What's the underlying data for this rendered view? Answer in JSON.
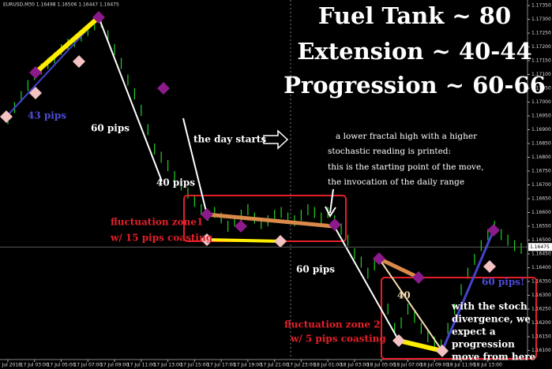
{
  "chart_data": {
    "type": "hilo",
    "header": "EURUSD,M30 1.16498 1.16506 1.16447 1.16475",
    "title_lines": [
      "Fuel Tank ~ 80",
      "Extension ~ 40-44",
      "Progression ~ 60-66"
    ],
    "annotations": [
      "43 pips",
      "60 pips",
      "40 pips",
      "the day starts",
      "a lower fractal high with a higher",
      "stochastic reading is printed:",
      "this is the starting point of the move,",
      "the invocation of the daily range",
      "fluctuation zone1",
      "w/ 15 pips coasting",
      "60 pips",
      "fluctuation zone 2",
      "w/ 5 pips coasting",
      "40",
      "60 pips!",
      "with the stoch",
      "divergence, we",
      "expect a",
      "progression",
      "move from here"
    ],
    "categories": [
      "17 Jul 2018",
      null,
      null,
      null,
      "17 Jul 03:00",
      null,
      null,
      null,
      "17 Jul 05:00",
      null,
      null,
      null,
      "17 Jul 07:00",
      null,
      null,
      null,
      "17 Jul 09:00",
      null,
      null,
      null,
      "17 Jul 11:00",
      null,
      null,
      null,
      "17 Jul 13:00",
      null,
      null,
      null,
      "17 Jul 15:00",
      null,
      null,
      null,
      "17 Jul 17:00",
      null,
      null,
      null,
      "17 Jul 19:00",
      null,
      null,
      null,
      "17 Jul 21:00",
      null,
      null,
      null,
      "17 Jul 23:00",
      null,
      null,
      null,
      "18 Jul 01:00",
      null,
      null,
      null,
      "18 Jul 03:00",
      null,
      null,
      null,
      "18 Jul 05:00",
      null,
      null,
      null,
      "18 Jul 07:00",
      null,
      null,
      null,
      "18 Jul 09:00",
      null,
      null,
      null,
      "18 Jul 11:00",
      null,
      null,
      null,
      "18 Jul 13:00",
      null,
      null,
      null,
      null,
      null
    ],
    "highs": [
      1.1696,
      1.17,
      1.1704,
      1.1708,
      1.1712,
      1.1714,
      1.1716,
      1.1718,
      1.1721,
      1.1723,
      1.1724,
      1.1726,
      1.1728,
      1.173,
      1.1731,
      1.1726,
      1.1721,
      1.1716,
      1.171,
      1.1705,
      1.1699,
      1.1692,
      1.1685,
      1.1682,
      1.1679,
      1.1675,
      1.1672,
      1.1669,
      1.1666,
      1.1663,
      1.1661,
      1.1662,
      1.166,
      1.1657,
      1.1659,
      1.1661,
      1.1663,
      1.166,
      1.1658,
      1.1659,
      1.1661,
      1.1662,
      1.166,
      1.1659,
      1.1661,
      1.1663,
      1.1662,
      1.166,
      1.1662,
      1.1659,
      1.1656,
      1.1652,
      1.1647,
      1.1644,
      1.164,
      1.1643,
      1.1635,
      1.1627,
      1.162,
      1.1622,
      1.1627,
      1.1624,
      1.162,
      1.1617,
      1.1615,
      1.1614,
      1.162,
      1.1627,
      1.1634,
      1.164,
      1.1645,
      1.165,
      1.1654,
      1.1657,
      1.1654,
      1.1652,
      1.165,
      1.1649
    ],
    "lows": [
      1.1692,
      1.1696,
      1.17,
      1.1704,
      1.1708,
      1.171,
      1.1712,
      1.1714,
      1.1717,
      1.1719,
      1.172,
      1.1722,
      1.1724,
      1.1726,
      1.1727,
      1.1722,
      1.1717,
      1.1712,
      1.1706,
      1.1701,
      1.1695,
      1.1688,
      1.1681,
      1.1678,
      1.1675,
      1.1671,
      1.1668,
      1.1665,
      1.1662,
      1.1659,
      1.1657,
      1.1658,
      1.1656,
      1.1653,
      1.1655,
      1.1657,
      1.1659,
      1.1656,
      1.1654,
      1.1655,
      1.1657,
      1.1658,
      1.1656,
      1.1655,
      1.1657,
      1.1659,
      1.1658,
      1.1656,
      1.1658,
      1.1655,
      1.1652,
      1.1648,
      1.1643,
      1.164,
      1.1636,
      1.1639,
      1.1631,
      1.1623,
      1.1616,
      1.1618,
      1.1623,
      1.162,
      1.1616,
      1.1613,
      1.1611,
      1.161,
      1.1616,
      1.1623,
      1.163,
      1.1636,
      1.1641,
      1.1646,
      1.165,
      1.1653,
      1.165,
      1.1648,
      1.1646,
      1.1645
    ],
    "color": "#22d022",
    "ylim": [
      1.1607,
      1.1737
    ],
    "yticks": [
      {
        "value": 1.161,
        "label": "1.16100"
      },
      {
        "value": 1.1615,
        "label": "1.16150"
      },
      {
        "value": 1.162,
        "label": "1.16200"
      },
      {
        "value": 1.1625,
        "label": "1.16250"
      },
      {
        "value": 1.163,
        "label": "1.16300"
      },
      {
        "value": 1.1635,
        "label": "1.16350"
      },
      {
        "value": 1.164,
        "label": "1.16400"
      },
      {
        "value": 1.1645,
        "label": "1.16450"
      },
      {
        "value": 1.165,
        "label": "1.16500"
      },
      {
        "value": 1.1655,
        "label": "1.16550"
      },
      {
        "value": 1.166,
        "label": "1.16600"
      },
      {
        "value": 1.1665,
        "label": "1.16650"
      },
      {
        "value": 1.167,
        "label": "1.16700"
      },
      {
        "value": 1.1675,
        "label": "1.16750"
      },
      {
        "value": 1.168,
        "label": "1.16800"
      },
      {
        "value": 1.1685,
        "label": "1.16850"
      },
      {
        "value": 1.169,
        "label": "1.16900"
      },
      {
        "value": 1.1695,
        "label": "1.16950"
      },
      {
        "value": 1.17,
        "label": "1.17000"
      },
      {
        "value": 1.1705,
        "label": "1.17050"
      },
      {
        "value": 1.171,
        "label": "1.17100"
      },
      {
        "value": 1.1715,
        "label": "1.17150"
      },
      {
        "value": 1.172,
        "label": "1.17200"
      },
      {
        "value": 1.1725,
        "label": "1.17250"
      },
      {
        "value": 1.173,
        "label": "1.17300"
      },
      {
        "value": 1.1735,
        "label": "1.17350"
      }
    ],
    "price_label": {
      "value": 1.16475,
      "label": "1.16475"
    }
  }
}
